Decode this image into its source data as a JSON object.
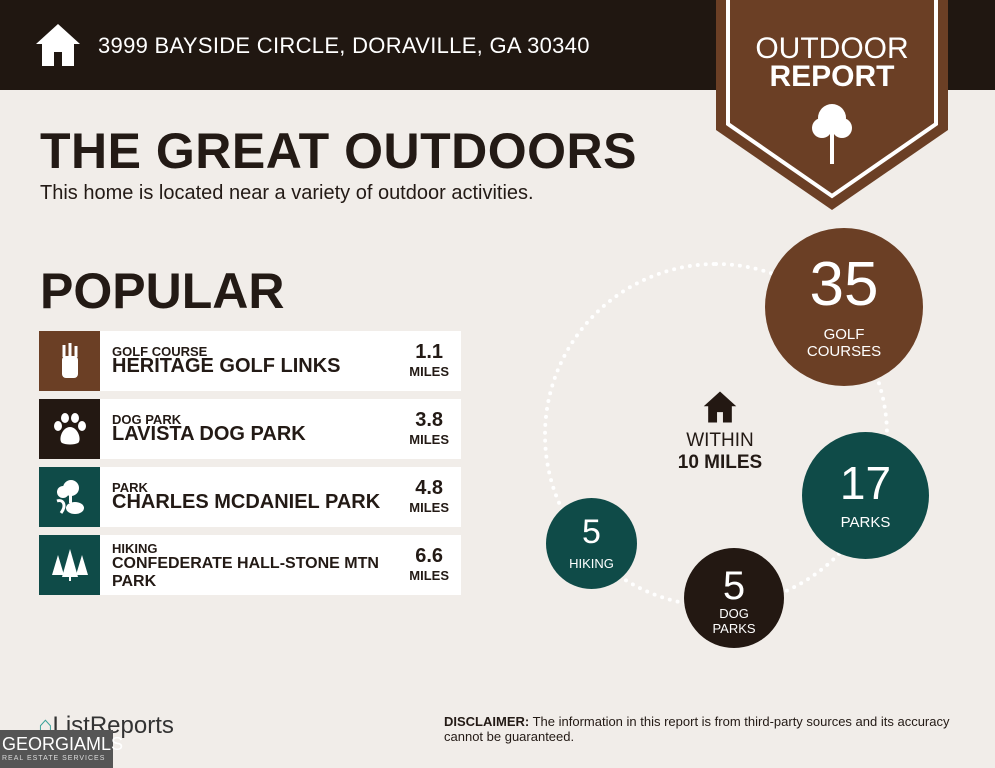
{
  "header": {
    "address": "3999 BAYSIDE CIRCLE, DORAVILLE, GA 30340"
  },
  "badge": {
    "line1": "OUTDOOR",
    "line2": "REPORT"
  },
  "title": "THE GREAT OUTDOORS",
  "subtitle": "This home is located near a variety of outdoor activities.",
  "popular": {
    "heading": "POPULAR",
    "items": [
      {
        "category": "GOLF COURSE",
        "name": "HERITAGE GOLF LINKS",
        "distance": "1.1",
        "unit": "MILES",
        "icon": "golf-bag-icon",
        "color": "#6b3f25"
      },
      {
        "category": "DOG PARK",
        "name": "LAVISTA DOG PARK",
        "distance": "3.8",
        "unit": "MILES",
        "icon": "paw-icon",
        "color": "#231812"
      },
      {
        "category": "PARK",
        "name": "CHARLES MCDANIEL PARK",
        "distance": "4.8",
        "unit": "MILES",
        "icon": "park-icon",
        "color": "#0f4b48"
      },
      {
        "category": "HIKING",
        "name": "CONFEDERATE HALL-STONE MTN PARK",
        "distance": "6.6",
        "unit": "MILES",
        "icon": "trees-icon",
        "color": "#0f4b48"
      }
    ]
  },
  "summary": {
    "within_line1": "WITHIN",
    "within_line2": "10 MILES",
    "golf": {
      "count": "35",
      "label": "GOLF COURSES"
    },
    "parks": {
      "count": "17",
      "label": "PARKS"
    },
    "dog": {
      "count": "5",
      "label_line1": "DOG",
      "label_line2": "PARKS"
    },
    "hiking": {
      "count": "5",
      "label": "HIKING"
    }
  },
  "footer": {
    "logo": "ListReports",
    "mls": "GEORGIAMLS",
    "mls_sub": "REAL ESTATE SERVICES",
    "disclaimer_label": "DISCLAIMER:",
    "disclaimer": " The information in this report is from third-party sources and its accuracy cannot be guaranteed."
  }
}
